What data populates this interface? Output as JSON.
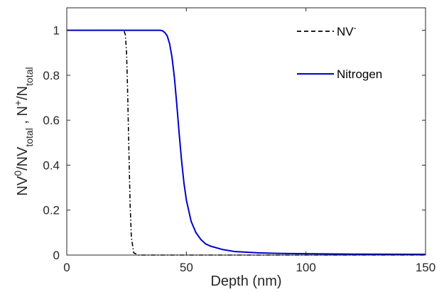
{
  "chart_data": {
    "type": "line",
    "xlabel": "Depth (nm)",
    "ylabel": {
      "parts": [
        {
          "t": "NV",
          "s": "normal"
        },
        {
          "t": "0",
          "s": "sup"
        },
        {
          "t": "/NV",
          "s": "normal"
        },
        {
          "t": "total",
          "s": "sub"
        },
        {
          "t": " , N",
          "s": "normal"
        },
        {
          "t": "+",
          "s": "sup"
        },
        {
          "t": "/N",
          "s": "normal"
        },
        {
          "t": "total",
          "s": "sub"
        }
      ]
    },
    "xlim": [
      0,
      150
    ],
    "ylim": [
      0,
      1.1
    ],
    "xticks": [
      0,
      50,
      100,
      150
    ],
    "yticks": [
      0,
      0.2,
      0.4,
      0.6,
      0.8,
      1
    ],
    "xtick_labels": [
      "0",
      "50",
      "100",
      "150"
    ],
    "ytick_labels": [
      "0",
      "0.2",
      "0.4",
      "0.6",
      "0.8",
      "1"
    ],
    "grid": false,
    "legend_position": "top-right",
    "series": [
      {
        "name": "NV-",
        "legend_label": {
          "parts": [
            {
              "t": "NV",
              "s": "normal"
            },
            {
              "t": "-",
              "s": "sup"
            }
          ]
        },
        "color": "#000000",
        "style": "dash-dot",
        "x": [
          0,
          20,
          23,
          24,
          24.5,
          25,
          25.5,
          26,
          26.5,
          27,
          28,
          30,
          50,
          100,
          150
        ],
        "y": [
          1,
          1,
          1,
          0.995,
          0.98,
          0.9,
          0.7,
          0.45,
          0.22,
          0.08,
          0.01,
          0,
          0,
          0,
          0
        ]
      },
      {
        "name": "Nitrogen",
        "legend_label": {
          "parts": [
            {
              "t": "Nitrogen",
              "s": "normal"
            }
          ]
        },
        "color": "#0000cc",
        "style": "solid",
        "x": [
          0,
          39,
          40,
          41,
          42,
          43,
          44,
          45,
          46,
          47,
          48,
          49,
          50,
          52,
          54,
          56,
          58,
          60,
          65,
          70,
          80,
          90,
          100,
          120,
          150
        ],
        "y": [
          1,
          1,
          0.998,
          0.99,
          0.975,
          0.94,
          0.88,
          0.79,
          0.67,
          0.54,
          0.42,
          0.32,
          0.245,
          0.15,
          0.1,
          0.07,
          0.05,
          0.04,
          0.025,
          0.016,
          0.01,
          0.007,
          0.006,
          0.004,
          0.003
        ]
      }
    ]
  }
}
